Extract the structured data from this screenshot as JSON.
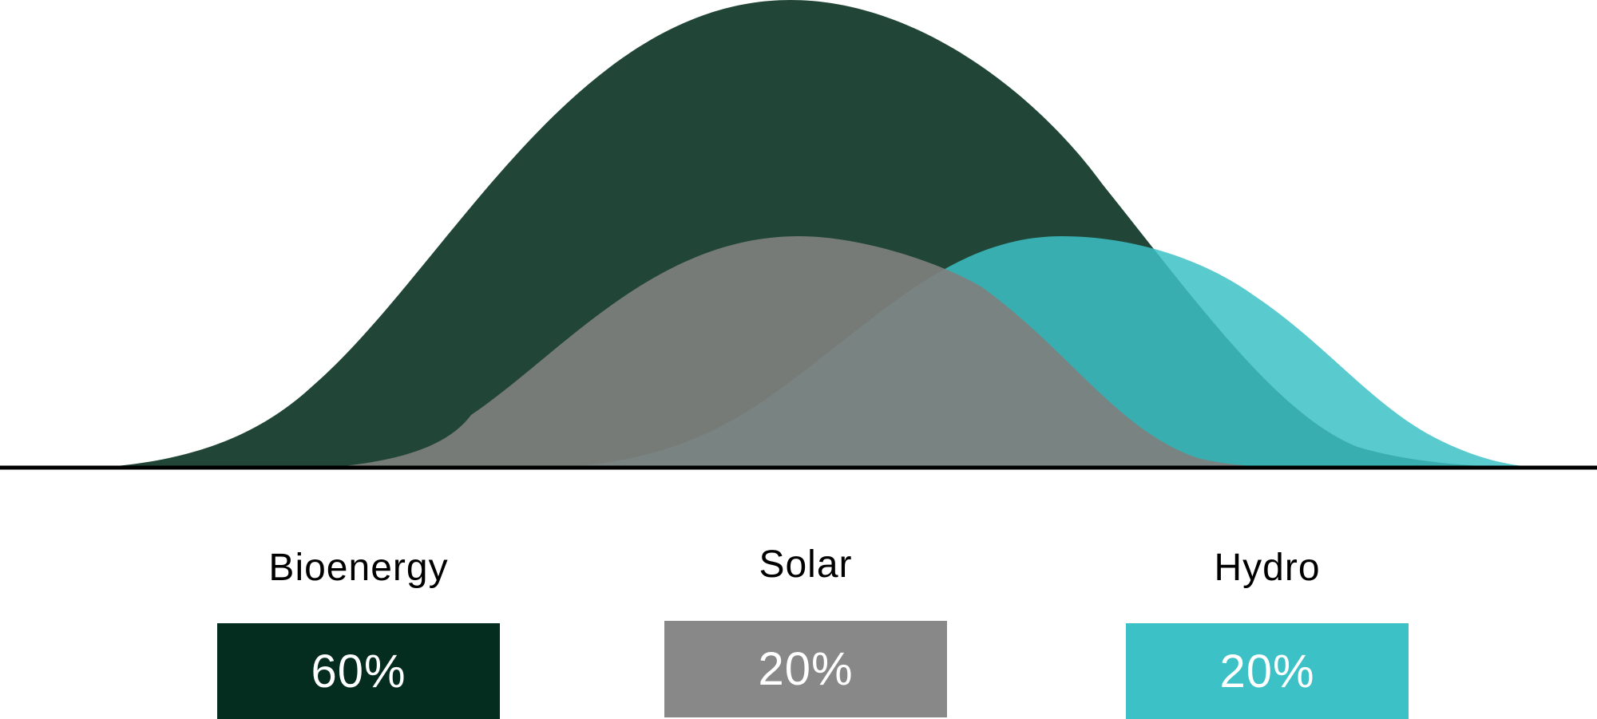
{
  "chart_data": {
    "type": "area",
    "series": [
      {
        "name": "Bioenergy",
        "value": "60%",
        "share": 60,
        "color": "#214637",
        "box_color": "#052d1f"
      },
      {
        "name": "Solar",
        "value": "20%",
        "share": 20,
        "color": "#7f807e",
        "box_color": "#888888"
      },
      {
        "name": "Hydro",
        "value": "20%",
        "share": 20,
        "color": "#3cc1c6",
        "box_color": "#3cc1c6"
      }
    ],
    "title": "",
    "xlabel": "",
    "ylabel": "",
    "grid": false,
    "legend": "bottom"
  }
}
